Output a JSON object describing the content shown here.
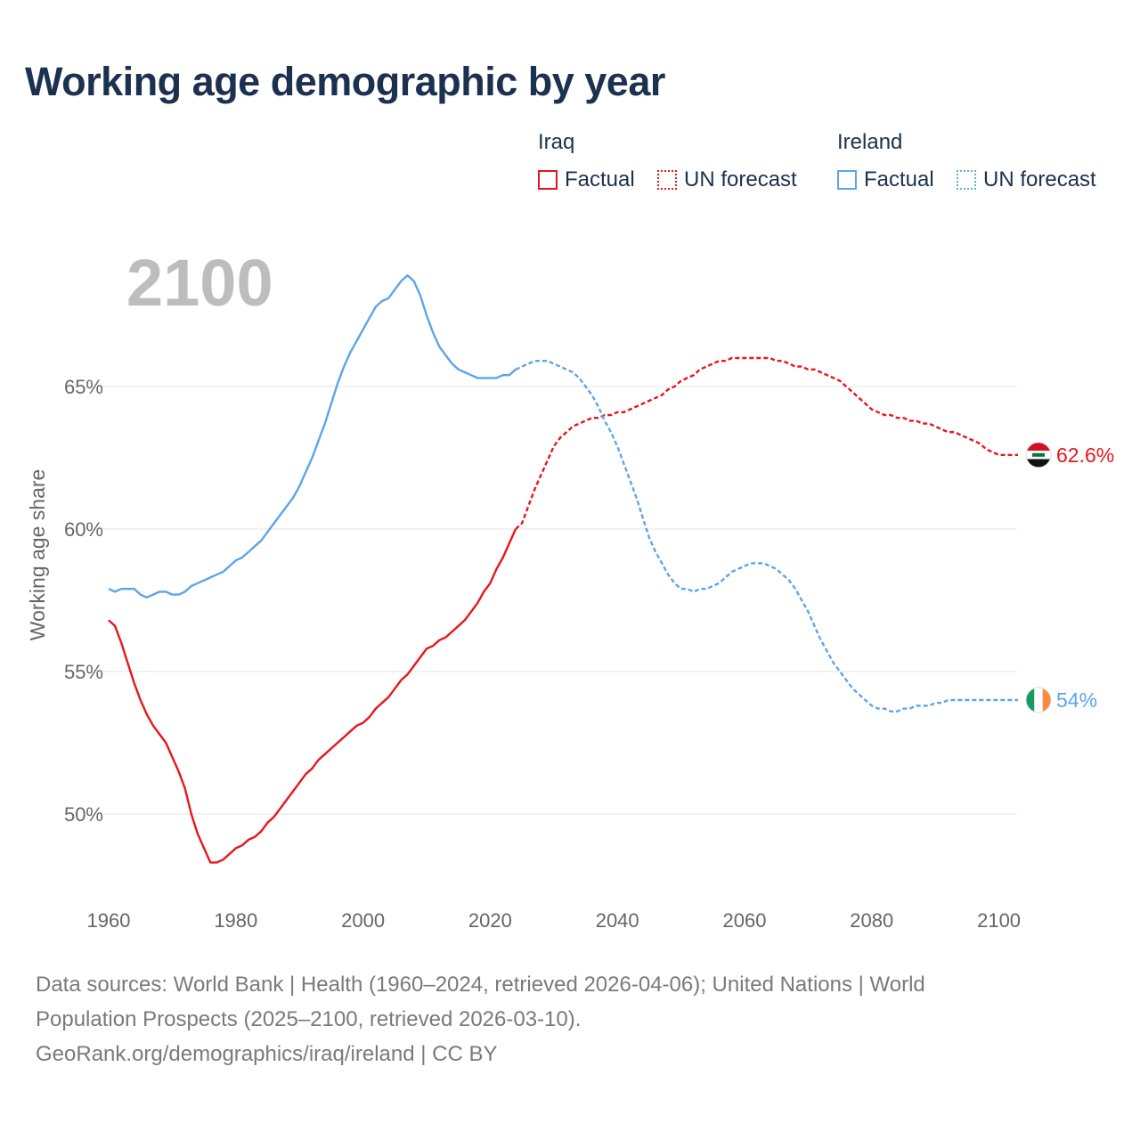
{
  "title": "Working age demographic by year",
  "legend": {
    "groups": [
      {
        "name": "Iraq",
        "color": "#e8161b",
        "items": [
          {
            "label": "Factual",
            "style": "solid"
          },
          {
            "label": "UN forecast",
            "style": "dotted"
          }
        ]
      },
      {
        "name": "Ireland",
        "color": "#5da5e8",
        "items": [
          {
            "label": "Factual",
            "style": "solid"
          },
          {
            "label": "UN forecast",
            "style": "dotted"
          }
        ]
      }
    ]
  },
  "footer": {
    "line1": "Data sources: World Bank | Health (1960–2024, retrieved 2026-04-06); United Nations | World",
    "line2": "Population Prospects (2025–2100, retrieved 2026-03-10).",
    "line3": "GeoRank.org/demographics/iraq/ireland | CC BY"
  },
  "chart_data": {
    "type": "line",
    "title": "Working age demographic by year",
    "current_year_label": "2100",
    "xlabel": "",
    "ylabel": "Working age share",
    "xlim": [
      1960,
      2103
    ],
    "ylim": [
      47,
      71
    ],
    "x_ticks": [
      1960,
      1980,
      2000,
      2020,
      2040,
      2060,
      2080,
      2100
    ],
    "x_tick_labels": [
      "1960",
      "1980",
      "2000",
      "2020",
      "2040",
      "2060",
      "2080",
      "2100"
    ],
    "y_ticks": [
      50,
      55,
      60,
      65
    ],
    "y_tick_labels": [
      "50%",
      "55%",
      "60%",
      "65%"
    ],
    "grid": true,
    "series": [
      {
        "name": "Iraq",
        "color": "#e8161b",
        "end_label": "62.6%",
        "flag": "iraq-flag",
        "factual": [
          [
            1960,
            56.8
          ],
          [
            1961,
            56.6
          ],
          [
            1962,
            56.0
          ],
          [
            1963,
            55.3
          ],
          [
            1964,
            54.6
          ],
          [
            1965,
            54.0
          ],
          [
            1966,
            53.5
          ],
          [
            1967,
            53.1
          ],
          [
            1968,
            52.8
          ],
          [
            1969,
            52.5
          ],
          [
            1970,
            52.0
          ],
          [
            1971,
            51.5
          ],
          [
            1972,
            50.9
          ],
          [
            1973,
            50.0
          ],
          [
            1974,
            49.3
          ],
          [
            1975,
            48.8
          ],
          [
            1976,
            48.3
          ],
          [
            1977,
            48.3
          ],
          [
            1978,
            48.4
          ],
          [
            1979,
            48.6
          ],
          [
            1980,
            48.8
          ],
          [
            1981,
            48.9
          ],
          [
            1982,
            49.1
          ],
          [
            1983,
            49.2
          ],
          [
            1984,
            49.4
          ],
          [
            1985,
            49.7
          ],
          [
            1986,
            49.9
          ],
          [
            1987,
            50.2
          ],
          [
            1988,
            50.5
          ],
          [
            1989,
            50.8
          ],
          [
            1990,
            51.1
          ],
          [
            1991,
            51.4
          ],
          [
            1992,
            51.6
          ],
          [
            1993,
            51.9
          ],
          [
            1994,
            52.1
          ],
          [
            1995,
            52.3
          ],
          [
            1996,
            52.5
          ],
          [
            1997,
            52.7
          ],
          [
            1998,
            52.9
          ],
          [
            1999,
            53.1
          ],
          [
            2000,
            53.2
          ],
          [
            2001,
            53.4
          ],
          [
            2002,
            53.7
          ],
          [
            2003,
            53.9
          ],
          [
            2004,
            54.1
          ],
          [
            2005,
            54.4
          ],
          [
            2006,
            54.7
          ],
          [
            2007,
            54.9
          ],
          [
            2008,
            55.2
          ],
          [
            2009,
            55.5
          ],
          [
            2010,
            55.8
          ],
          [
            2011,
            55.9
          ],
          [
            2012,
            56.1
          ],
          [
            2013,
            56.2
          ],
          [
            2014,
            56.4
          ],
          [
            2015,
            56.6
          ],
          [
            2016,
            56.8
          ],
          [
            2017,
            57.1
          ],
          [
            2018,
            57.4
          ],
          [
            2019,
            57.8
          ],
          [
            2020,
            58.1
          ],
          [
            2021,
            58.6
          ],
          [
            2022,
            59.0
          ],
          [
            2023,
            59.5
          ],
          [
            2024,
            60.0
          ]
        ],
        "forecast": [
          [
            2024,
            60.0
          ],
          [
            2025,
            60.2
          ],
          [
            2026,
            60.8
          ],
          [
            2027,
            61.4
          ],
          [
            2028,
            61.9
          ],
          [
            2029,
            62.4
          ],
          [
            2030,
            62.9
          ],
          [
            2031,
            63.2
          ],
          [
            2032,
            63.4
          ],
          [
            2033,
            63.6
          ],
          [
            2034,
            63.7
          ],
          [
            2035,
            63.8
          ],
          [
            2036,
            63.9
          ],
          [
            2037,
            63.9
          ],
          [
            2038,
            64.0
          ],
          [
            2039,
            64.0
          ],
          [
            2040,
            64.1
          ],
          [
            2041,
            64.1
          ],
          [
            2042,
            64.2
          ],
          [
            2043,
            64.3
          ],
          [
            2044,
            64.4
          ],
          [
            2045,
            64.5
          ],
          [
            2046,
            64.6
          ],
          [
            2047,
            64.7
          ],
          [
            2048,
            64.9
          ],
          [
            2049,
            65.0
          ],
          [
            2050,
            65.2
          ],
          [
            2051,
            65.3
          ],
          [
            2052,
            65.4
          ],
          [
            2053,
            65.6
          ],
          [
            2054,
            65.7
          ],
          [
            2055,
            65.8
          ],
          [
            2056,
            65.9
          ],
          [
            2057,
            65.9
          ],
          [
            2058,
            66.0
          ],
          [
            2059,
            66.0
          ],
          [
            2060,
            66.0
          ],
          [
            2061,
            66.0
          ],
          [
            2062,
            66.0
          ],
          [
            2063,
            66.0
          ],
          [
            2064,
            66.0
          ],
          [
            2065,
            65.9
          ],
          [
            2066,
            65.9
          ],
          [
            2067,
            65.8
          ],
          [
            2068,
            65.7
          ],
          [
            2069,
            65.7
          ],
          [
            2070,
            65.6
          ],
          [
            2071,
            65.6
          ],
          [
            2072,
            65.5
          ],
          [
            2073,
            65.4
          ],
          [
            2074,
            65.3
          ],
          [
            2075,
            65.2
          ],
          [
            2076,
            65.0
          ],
          [
            2077,
            64.8
          ],
          [
            2078,
            64.6
          ],
          [
            2079,
            64.4
          ],
          [
            2080,
            64.2
          ],
          [
            2081,
            64.1
          ],
          [
            2082,
            64.0
          ],
          [
            2083,
            64.0
          ],
          [
            2084,
            63.9
          ],
          [
            2085,
            63.9
          ],
          [
            2086,
            63.8
          ],
          [
            2087,
            63.8
          ],
          [
            2088,
            63.7
          ],
          [
            2089,
            63.7
          ],
          [
            2090,
            63.6
          ],
          [
            2091,
            63.5
          ],
          [
            2092,
            63.4
          ],
          [
            2093,
            63.4
          ],
          [
            2094,
            63.3
          ],
          [
            2095,
            63.2
          ],
          [
            2096,
            63.1
          ],
          [
            2097,
            63.0
          ],
          [
            2098,
            62.8
          ],
          [
            2099,
            62.7
          ],
          [
            2100,
            62.6
          ],
          [
            2103,
            62.6
          ]
        ]
      },
      {
        "name": "Ireland",
        "color": "#5da5e8",
        "end_label": "54%",
        "flag": "ireland-flag",
        "factual": [
          [
            1960,
            57.9
          ],
          [
            1961,
            57.8
          ],
          [
            1962,
            57.9
          ],
          [
            1963,
            57.9
          ],
          [
            1964,
            57.9
          ],
          [
            1965,
            57.7
          ],
          [
            1966,
            57.6
          ],
          [
            1967,
            57.7
          ],
          [
            1968,
            57.8
          ],
          [
            1969,
            57.8
          ],
          [
            1970,
            57.7
          ],
          [
            1971,
            57.7
          ],
          [
            1972,
            57.8
          ],
          [
            1973,
            58.0
          ],
          [
            1974,
            58.1
          ],
          [
            1975,
            58.2
          ],
          [
            1976,
            58.3
          ],
          [
            1977,
            58.4
          ],
          [
            1978,
            58.5
          ],
          [
            1979,
            58.7
          ],
          [
            1980,
            58.9
          ],
          [
            1981,
            59.0
          ],
          [
            1982,
            59.2
          ],
          [
            1983,
            59.4
          ],
          [
            1984,
            59.6
          ],
          [
            1985,
            59.9
          ],
          [
            1986,
            60.2
          ],
          [
            1987,
            60.5
          ],
          [
            1988,
            60.8
          ],
          [
            1989,
            61.1
          ],
          [
            1990,
            61.5
          ],
          [
            1991,
            62.0
          ],
          [
            1992,
            62.5
          ],
          [
            1993,
            63.1
          ],
          [
            1994,
            63.7
          ],
          [
            1995,
            64.4
          ],
          [
            1996,
            65.1
          ],
          [
            1997,
            65.7
          ],
          [
            1998,
            66.2
          ],
          [
            1999,
            66.6
          ],
          [
            2000,
            67.0
          ],
          [
            2001,
            67.4
          ],
          [
            2002,
            67.8
          ],
          [
            2003,
            68.0
          ],
          [
            2004,
            68.1
          ],
          [
            2005,
            68.4
          ],
          [
            2006,
            68.7
          ],
          [
            2007,
            68.9
          ],
          [
            2008,
            68.7
          ],
          [
            2009,
            68.2
          ],
          [
            2010,
            67.5
          ],
          [
            2011,
            66.9
          ],
          [
            2012,
            66.4
          ],
          [
            2013,
            66.1
          ],
          [
            2014,
            65.8
          ],
          [
            2015,
            65.6
          ],
          [
            2016,
            65.5
          ],
          [
            2017,
            65.4
          ],
          [
            2018,
            65.3
          ],
          [
            2019,
            65.3
          ],
          [
            2020,
            65.3
          ],
          [
            2021,
            65.3
          ],
          [
            2022,
            65.4
          ],
          [
            2023,
            65.4
          ],
          [
            2024,
            65.6
          ]
        ],
        "forecast": [
          [
            2024,
            65.6
          ],
          [
            2025,
            65.7
          ],
          [
            2026,
            65.8
          ],
          [
            2027,
            65.9
          ],
          [
            2028,
            65.9
          ],
          [
            2029,
            65.9
          ],
          [
            2030,
            65.8
          ],
          [
            2031,
            65.7
          ],
          [
            2032,
            65.6
          ],
          [
            2033,
            65.5
          ],
          [
            2034,
            65.3
          ],
          [
            2035,
            65.0
          ],
          [
            2036,
            64.7
          ],
          [
            2037,
            64.3
          ],
          [
            2038,
            63.8
          ],
          [
            2039,
            63.4
          ],
          [
            2040,
            62.9
          ],
          [
            2041,
            62.3
          ],
          [
            2042,
            61.7
          ],
          [
            2043,
            61.1
          ],
          [
            2044,
            60.4
          ],
          [
            2045,
            59.7
          ],
          [
            2046,
            59.2
          ],
          [
            2047,
            58.8
          ],
          [
            2048,
            58.4
          ],
          [
            2049,
            58.1
          ],
          [
            2050,
            57.9
          ],
          [
            2051,
            57.9
          ],
          [
            2052,
            57.8
          ],
          [
            2053,
            57.9
          ],
          [
            2054,
            57.9
          ],
          [
            2055,
            58.0
          ],
          [
            2056,
            58.1
          ],
          [
            2057,
            58.3
          ],
          [
            2058,
            58.5
          ],
          [
            2059,
            58.6
          ],
          [
            2060,
            58.7
          ],
          [
            2061,
            58.8
          ],
          [
            2062,
            58.8
          ],
          [
            2063,
            58.8
          ],
          [
            2064,
            58.7
          ],
          [
            2065,
            58.6
          ],
          [
            2066,
            58.4
          ],
          [
            2067,
            58.2
          ],
          [
            2068,
            57.9
          ],
          [
            2069,
            57.5
          ],
          [
            2070,
            57.1
          ],
          [
            2071,
            56.6
          ],
          [
            2072,
            56.1
          ],
          [
            2073,
            55.7
          ],
          [
            2074,
            55.3
          ],
          [
            2075,
            55.0
          ],
          [
            2076,
            54.7
          ],
          [
            2077,
            54.4
          ],
          [
            2078,
            54.2
          ],
          [
            2079,
            54.0
          ],
          [
            2080,
            53.8
          ],
          [
            2081,
            53.7
          ],
          [
            2082,
            53.7
          ],
          [
            2083,
            53.6
          ],
          [
            2084,
            53.6
          ],
          [
            2085,
            53.7
          ],
          [
            2086,
            53.7
          ],
          [
            2087,
            53.8
          ],
          [
            2088,
            53.8
          ],
          [
            2089,
            53.8
          ],
          [
            2090,
            53.9
          ],
          [
            2091,
            53.9
          ],
          [
            2092,
            54.0
          ],
          [
            2093,
            54.0
          ],
          [
            2094,
            54.0
          ],
          [
            2095,
            54.0
          ],
          [
            2096,
            54.0
          ],
          [
            2097,
            54.0
          ],
          [
            2098,
            54.0
          ],
          [
            2099,
            54.0
          ],
          [
            2100,
            54.0
          ],
          [
            2103,
            54.0
          ]
        ]
      }
    ]
  }
}
